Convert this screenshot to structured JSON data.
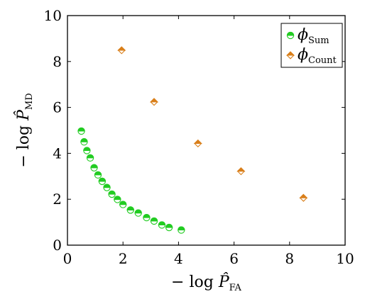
{
  "chart_data": {
    "type": "scatter",
    "xlabel": {
      "prefix": "− log ",
      "symbol": "P̂",
      "subscript": "FA"
    },
    "ylabel": {
      "prefix": "− log ",
      "symbol": "P̂",
      "subscript": "MD"
    },
    "xlim": [
      0,
      10
    ],
    "ylim": [
      0,
      10
    ],
    "xticks": [
      0,
      2,
      4,
      6,
      8,
      10
    ],
    "yticks": [
      0,
      2,
      4,
      6,
      8,
      10
    ],
    "grid": false,
    "legend_position": "top-right",
    "series": [
      {
        "name": "ϕ",
        "name_subscript": "Sum",
        "marker": "circle-half",
        "color": "#22cc22",
        "points": [
          [
            0.5,
            4.97
          ],
          [
            0.6,
            4.5
          ],
          [
            0.7,
            4.12
          ],
          [
            0.82,
            3.8
          ],
          [
            0.96,
            3.37
          ],
          [
            1.1,
            3.06
          ],
          [
            1.25,
            2.78
          ],
          [
            1.42,
            2.51
          ],
          [
            1.6,
            2.22
          ],
          [
            1.8,
            1.99
          ],
          [
            2.0,
            1.77
          ],
          [
            2.27,
            1.53
          ],
          [
            2.55,
            1.4
          ],
          [
            2.85,
            1.2
          ],
          [
            3.12,
            1.05
          ],
          [
            3.4,
            0.88
          ],
          [
            3.66,
            0.77
          ],
          [
            4.1,
            0.66
          ]
        ]
      },
      {
        "name": "ϕ",
        "name_subscript": "Count",
        "marker": "diamond-half",
        "color": "#d97f1a",
        "points": [
          [
            1.95,
            8.49
          ],
          [
            3.12,
            6.24
          ],
          [
            4.7,
            4.43
          ],
          [
            6.25,
            3.22
          ],
          [
            8.5,
            2.06
          ]
        ]
      }
    ]
  }
}
